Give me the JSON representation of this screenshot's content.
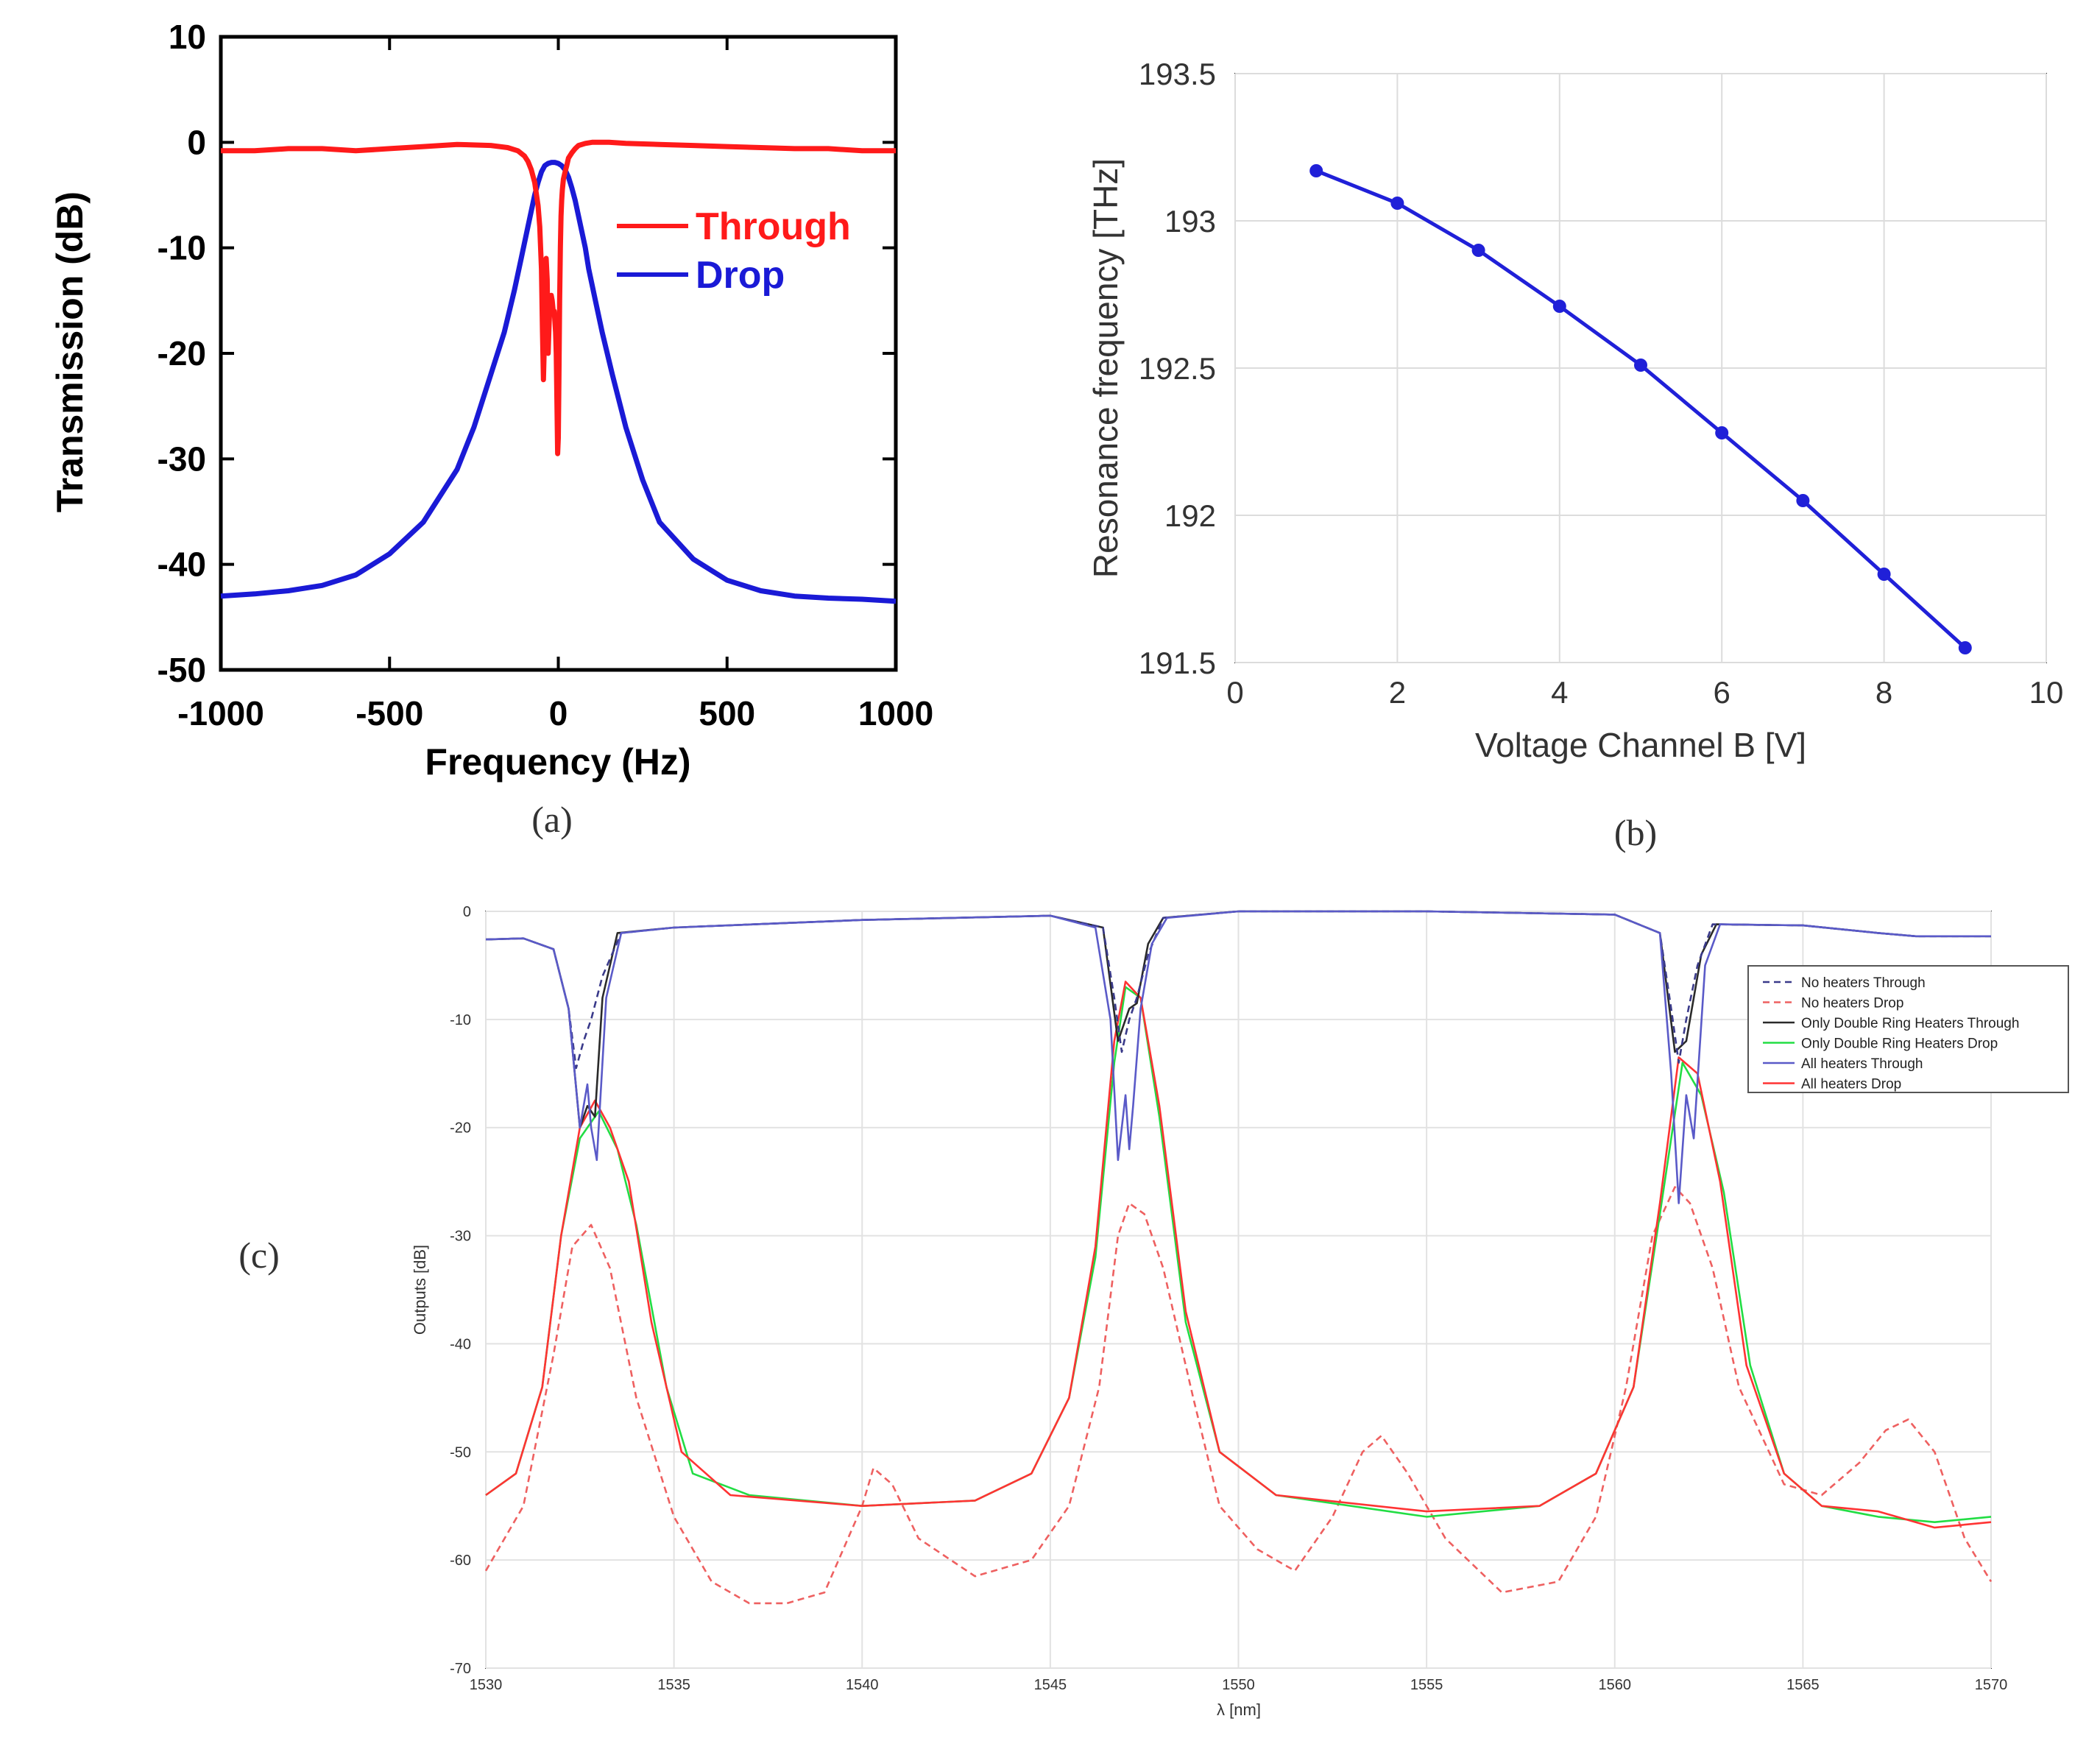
{
  "chart_data": [
    {
      "id": "a",
      "type": "line",
      "panel_label": "(a)",
      "xlabel": "Frequency (Hz)",
      "ylabel": "Transmission (dB)",
      "xlim": [
        -1000,
        1000
      ],
      "ylim": [
        -50,
        10
      ],
      "xticks": [
        -1000,
        -500,
        0,
        500,
        1000
      ],
      "xtick_labels": [
        "-1000",
        "-500",
        "0",
        "500",
        "1000"
      ],
      "yticks": [
        10,
        0,
        -10,
        -20,
        -30,
        -40,
        -50
      ],
      "ytick_labels": [
        "10",
        "0",
        "-10",
        "-20",
        "-30",
        "-40",
        "-50"
      ],
      "grid": false,
      "legend_position": "top-right",
      "series": [
        {
          "name": "Through",
          "color": "#ff1a1a",
          "x": [
            -1000,
            -900,
            -800,
            -700,
            -600,
            -500,
            -400,
            -300,
            -200,
            -150,
            -120,
            -100,
            -90,
            -80,
            -70,
            -60,
            -55,
            -50,
            -47,
            -44,
            -42,
            -40,
            -38,
            -36,
            -33,
            -30,
            -27,
            -24,
            -21,
            -18,
            -15,
            -12,
            -10,
            -8,
            -6,
            -4,
            -2,
            0,
            2,
            4,
            6,
            8,
            10,
            12,
            15,
            20,
            25,
            30,
            40,
            50,
            60,
            80,
            100,
            150,
            200,
            300,
            400,
            500,
            600,
            700,
            800,
            900,
            1000
          ],
          "y": [
            -0.8,
            -0.8,
            -0.6,
            -0.6,
            -0.8,
            -0.6,
            -0.4,
            -0.2,
            -0.3,
            -0.5,
            -0.8,
            -1.3,
            -1.8,
            -2.6,
            -3.8,
            -6.0,
            -8.0,
            -12,
            -18,
            -22.5,
            -20,
            -15,
            -12,
            -11,
            -13,
            -20,
            -17,
            -15,
            -14.5,
            -15,
            -16,
            -16,
            -17,
            -18,
            -20,
            -25,
            -29.5,
            -28,
            -22,
            -15,
            -10,
            -7,
            -5.5,
            -4.5,
            -3.5,
            -2.8,
            -2.2,
            -1.5,
            -1.0,
            -0.6,
            -0.3,
            -0.1,
            0,
            0,
            -0.1,
            -0.2,
            -0.3,
            -0.4,
            -0.5,
            -0.6,
            -0.6,
            -0.8,
            -0.8
          ]
        },
        {
          "name": "Drop",
          "color": "#1a1ad6",
          "x": [
            -1000,
            -900,
            -800,
            -700,
            -600,
            -500,
            -400,
            -300,
            -250,
            -200,
            -160,
            -130,
            -110,
            -90,
            -80,
            -70,
            -60,
            -50,
            -40,
            -30,
            -20,
            -10,
            0,
            10,
            20,
            30,
            40,
            50,
            60,
            70,
            80,
            90,
            110,
            130,
            160,
            200,
            250,
            300,
            400,
            500,
            600,
            700,
            800,
            900,
            1000
          ],
          "y": [
            -43,
            -42.8,
            -42.5,
            -42,
            -41,
            -39,
            -36,
            -31,
            -27,
            -22,
            -18,
            -14,
            -11,
            -8,
            -6.5,
            -5,
            -3.8,
            -2.8,
            -2.2,
            -2.0,
            -1.9,
            -1.9,
            -2.0,
            -2.2,
            -2.6,
            -3.3,
            -4.3,
            -5.5,
            -7,
            -8.5,
            -10,
            -12,
            -15,
            -18,
            -22,
            -27,
            -32,
            -36,
            -39.5,
            -41.5,
            -42.5,
            -43,
            -43.2,
            -43.3,
            -43.5
          ]
        }
      ]
    },
    {
      "id": "b",
      "type": "line",
      "panel_label": "(b)",
      "xlabel": "Voltage Channel B [V]",
      "ylabel": "Resonance frequency [THz]",
      "xlim": [
        0,
        10
      ],
      "ylim": [
        191.5,
        193.5
      ],
      "xticks": [
        0,
        2,
        4,
        6,
        8,
        10
      ],
      "xtick_labels": [
        "0",
        "2",
        "4",
        "6",
        "8",
        "10"
      ],
      "yticks": [
        191.5,
        192,
        192.5,
        193,
        193.5
      ],
      "ytick_labels": [
        "191.5",
        "192",
        "192.5",
        "193",
        "193.5"
      ],
      "grid": true,
      "series": [
        {
          "name": "Resonance frequency",
          "color": "#2020d8",
          "x": [
            1,
            2,
            3,
            4,
            5,
            6,
            7,
            8,
            9
          ],
          "y": [
            193.17,
            193.06,
            192.9,
            192.71,
            192.51,
            192.28,
            192.05,
            191.8,
            191.55
          ]
        }
      ]
    },
    {
      "id": "c",
      "type": "line",
      "panel_label": "(c)",
      "xlabel": "λ [nm]",
      "ylabel": "Outputs [dB]",
      "xlim": [
        1530,
        1570
      ],
      "ylim": [
        -70,
        0
      ],
      "xticks": [
        1530,
        1535,
        1540,
        1545,
        1550,
        1555,
        1560,
        1565,
        1570
      ],
      "xtick_labels": [
        "1530",
        "1535",
        "1540",
        "1545",
        "1550",
        "1555",
        "1560",
        "1565",
        "1570"
      ],
      "yticks": [
        0,
        -10,
        -20,
        -30,
        -40,
        -50,
        -60,
        -70
      ],
      "ytick_labels": [
        "0",
        "-10",
        "-20",
        "-30",
        "-40",
        "-50",
        "-60",
        "-70"
      ],
      "grid": true,
      "legend_position": "top-right",
      "series": [
        {
          "name": "No heaters Through",
          "color": "#3a3a8a",
          "dash": true,
          "x": [
            1530,
            1531,
            1531.8,
            1532.2,
            1532.4,
            1532.6,
            1532.8,
            1533.1,
            1533.6,
            1535,
            1540,
            1545,
            1546.4,
            1546.7,
            1546.9,
            1547.1,
            1547.3,
            1547.6,
            1548,
            1550,
            1555,
            1560,
            1561.2,
            1561.5,
            1561.7,
            1561.9,
            1562.2,
            1562.6,
            1565,
            1567,
            1568,
            1570
          ],
          "y": [
            -2.6,
            -2.5,
            -3.5,
            -9,
            -14.5,
            -12,
            -10,
            -6,
            -2,
            -1.5,
            -0.8,
            -0.4,
            -1.5,
            -8,
            -13,
            -10,
            -8,
            -4,
            -0.6,
            0,
            0,
            -0.3,
            -2,
            -9,
            -14,
            -10,
            -5,
            -1.2,
            -1.3,
            -2,
            -2.3,
            -2.3
          ]
        },
        {
          "name": "No heaters Drop",
          "color": "#ee6060",
          "dash": true,
          "x": [
            1530,
            1531,
            1531.8,
            1532.3,
            1532.8,
            1533.3,
            1534,
            1535,
            1536,
            1537,
            1538,
            1539,
            1540,
            1540.3,
            1540.8,
            1541.5,
            1543,
            1544.5,
            1545.5,
            1546.3,
            1546.8,
            1547.1,
            1547.5,
            1548,
            1548.8,
            1549.5,
            1550.5,
            1551.5,
            1552.5,
            1553.3,
            1553.8,
            1554.5,
            1555.5,
            1557,
            1558.5,
            1559.5,
            1560.3,
            1561,
            1561.6,
            1562,
            1562.6,
            1563.3,
            1564.5,
            1565.5,
            1566.5,
            1567.2,
            1567.8,
            1568.5,
            1569.3,
            1570
          ],
          "y": [
            -61,
            -55,
            -41,
            -31,
            -29,
            -33,
            -45,
            -56,
            -62,
            -64,
            -64,
            -63,
            -55,
            -51.5,
            -53,
            -58,
            -61.5,
            -60,
            -55,
            -44,
            -30,
            -27,
            -28,
            -33,
            -45,
            -55,
            -59,
            -61,
            -56,
            -50,
            -48.5,
            -52,
            -58,
            -63,
            -62,
            -56,
            -44,
            -30,
            -25.5,
            -27,
            -33,
            -44,
            -53,
            -54,
            -51,
            -48,
            -47,
            -50,
            -58,
            -62
          ]
        },
        {
          "name": "Only Double Ring Heaters Through",
          "color": "#2a2a2a",
          "dash": false,
          "x": [
            1530,
            1531,
            1531.8,
            1532.2,
            1532.5,
            1532.7,
            1532.9,
            1533.1,
            1533.5,
            1535,
            1540,
            1545,
            1546.4,
            1546.8,
            1547.1,
            1547.3,
            1547.6,
            1548,
            1550,
            1555,
            1560,
            1561.2,
            1561.6,
            1561.9,
            1562.3,
            1562.7,
            1565,
            1567,
            1568,
            1570
          ],
          "y": [
            -2.6,
            -2.5,
            -3.5,
            -9,
            -20,
            -18,
            -19,
            -8,
            -2,
            -1.5,
            -0.8,
            -0.4,
            -1.5,
            -12,
            -9,
            -8.5,
            -3,
            -0.6,
            0,
            0,
            -0.3,
            -2,
            -13,
            -12,
            -4,
            -1.2,
            -1.3,
            -2,
            -2.3,
            -2.3
          ]
        },
        {
          "name": "Only Double Ring Heaters Drop",
          "color": "#22dd44",
          "dash": false,
          "x": [
            1530,
            1530.8,
            1531.5,
            1532,
            1532.5,
            1533,
            1533.5,
            1534,
            1534.8,
            1535.5,
            1537,
            1540,
            1543,
            1544.5,
            1545.5,
            1546.2,
            1546.7,
            1547,
            1547.4,
            1547.9,
            1548.6,
            1549.5,
            1551,
            1555,
            1558,
            1559.5,
            1560.5,
            1561.2,
            1561.8,
            1562.3,
            1562.9,
            1563.6,
            1564.5,
            1565.5,
            1567,
            1568.5,
            1570
          ],
          "y": [
            -54,
            -52,
            -44,
            -30,
            -21,
            -18.5,
            -22,
            -29,
            -44,
            -52,
            -54,
            -55,
            -54.5,
            -52,
            -45,
            -32,
            -14,
            -7,
            -8,
            -19,
            -38,
            -50,
            -54,
            -56,
            -55,
            -52,
            -44,
            -28,
            -14,
            -17,
            -26,
            -42,
            -52,
            -55,
            -56,
            -56.5,
            -56
          ]
        },
        {
          "name": "All heaters Through",
          "color": "#5a5ac8",
          "dash": false,
          "x": [
            1530,
            1531,
            1531.8,
            1532.2,
            1532.5,
            1532.7,
            1532.8,
            1532.95,
            1533.2,
            1533.6,
            1535,
            1540,
            1545,
            1546.2,
            1546.6,
            1546.8,
            1547,
            1547.1,
            1547.2,
            1547.4,
            1547.7,
            1548.1,
            1550,
            1555,
            1560,
            1561.2,
            1561.5,
            1561.7,
            1561.9,
            1562.1,
            1562.4,
            1562.8,
            1565,
            1567,
            1568,
            1570
          ],
          "y": [
            -2.6,
            -2.5,
            -3.5,
            -9,
            -20,
            -16,
            -20,
            -23,
            -8,
            -2,
            -1.5,
            -0.8,
            -0.4,
            -1.5,
            -10,
            -23,
            -17,
            -22,
            -18,
            -9,
            -3,
            -0.6,
            0,
            0,
            -0.3,
            -2,
            -15,
            -27,
            -17,
            -21,
            -5,
            -1.2,
            -1.3,
            -2,
            -2.3,
            -2.3
          ]
        },
        {
          "name": "All heaters Drop",
          "color": "#ff3333",
          "dash": false,
          "x": [
            1530,
            1530.8,
            1531.5,
            1532,
            1532.5,
            1532.9,
            1533.3,
            1533.8,
            1534.4,
            1535.2,
            1536.5,
            1540,
            1543,
            1544.5,
            1545.5,
            1546.2,
            1546.7,
            1547,
            1547.4,
            1547.9,
            1548.6,
            1549.5,
            1551,
            1555,
            1558,
            1559.5,
            1560.5,
            1561.2,
            1561.7,
            1562.2,
            1562.8,
            1563.5,
            1564.5,
            1565.5,
            1567,
            1568.5,
            1570
          ],
          "y": [
            -54,
            -52,
            -44,
            -30,
            -20,
            -17.5,
            -20,
            -25,
            -38,
            -50,
            -54,
            -55,
            -54.5,
            -52,
            -45,
            -31,
            -12,
            -6.5,
            -8,
            -18,
            -37,
            -50,
            -54,
            -55.5,
            -55,
            -52,
            -44,
            -27,
            -13.5,
            -15,
            -25,
            -42,
            -52,
            -55,
            -55.5,
            -57,
            -56.5
          ]
        }
      ]
    }
  ]
}
